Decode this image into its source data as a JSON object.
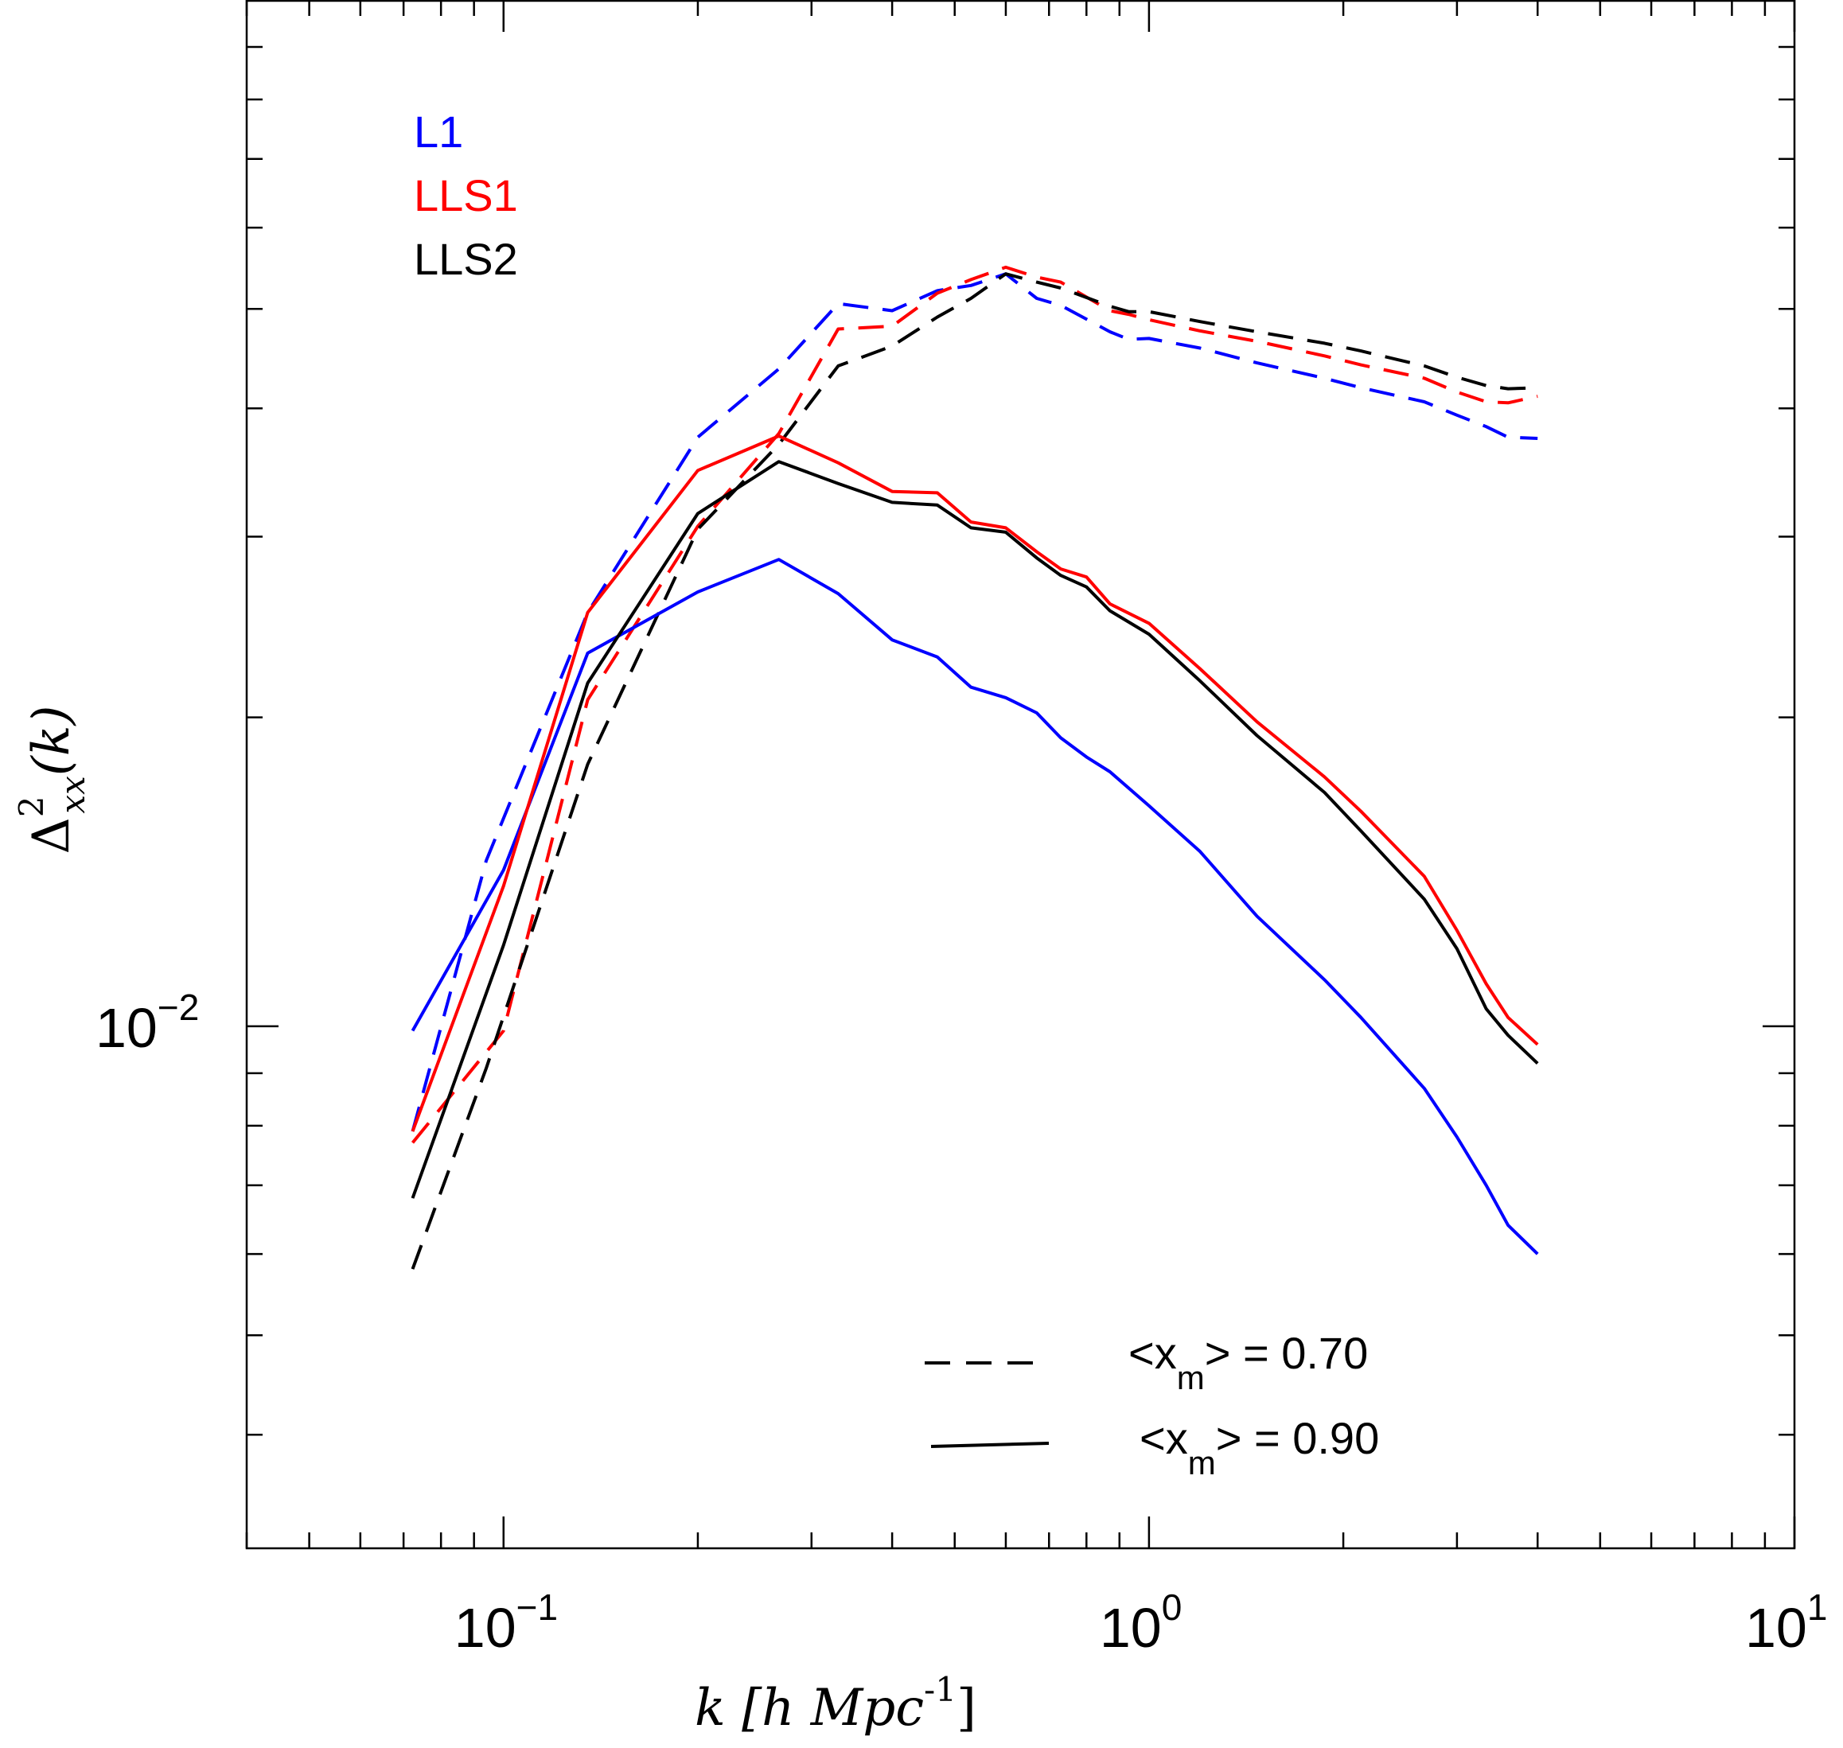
{
  "chart_data": {
    "type": "line",
    "x_scale": "log",
    "y_scale": "log",
    "xlim": [
      0.04,
      10
    ],
    "ylim": [
      0.0031,
      0.1
    ],
    "xlabel": "k  [h  Mpc",
    "xlabel_sup": "-1",
    "xlabel_close": "]",
    "ylabel": "Δ",
    "ylabel_sup": "2",
    "ylabel_sub": "xx",
    "ylabel_rest": "(k)",
    "x_ticks": [
      {
        "value": 0.1,
        "base": "10",
        "exp": "−1"
      },
      {
        "value": 1,
        "base": "10",
        "exp": "0"
      },
      {
        "value": 10,
        "base": "10",
        "exp": "1"
      }
    ],
    "y_ticks": [
      {
        "value": 0.01,
        "base": "10",
        "exp": "−2"
      }
    ],
    "colors": {
      "L1": "#0000ff",
      "LLS1": "#ff0000",
      "LLS2": "#000000"
    },
    "series_legend": [
      {
        "name": "L1",
        "color": "#0000ff"
      },
      {
        "name": "LLS1",
        "color": "#ff0000"
      },
      {
        "name": "LLS2",
        "color": "#000000"
      }
    ],
    "style_legend": [
      {
        "dash": true,
        "text_pre": "<x",
        "sub": "m",
        "text_post": "> = 0.70"
      },
      {
        "dash": false,
        "text_pre": "<x",
        "sub": "m",
        "text_post": "> = 0.90"
      }
    ],
    "series": [
      {
        "name": "L1",
        "dashed": true,
        "x_n": 0.07,
        "x_s": [
          0.0723,
          0.094,
          0.135,
          0.2,
          0.267,
          0.33,
          0.4,
          0.47,
          0.53,
          0.6,
          0.67,
          0.73,
          0.87,
          0.93,
          1.0,
          1.2,
          1.47,
          1.87,
          2.13,
          2.67,
          3.0,
          3.33,
          3.6,
          4.0
        ],
        "y": [
          0.0079,
          0.0145,
          0.0253,
          0.0375,
          0.0437,
          0.0506,
          0.0498,
          0.0521,
          0.0527,
          0.0541,
          0.0512,
          0.0504,
          0.0475,
          0.0467,
          0.0468,
          0.0458,
          0.0443,
          0.0428,
          0.0419,
          0.0406,
          0.0394,
          0.0384,
          0.0375,
          0.0374
        ]
      },
      {
        "name": "LLS1",
        "dashed": true,
        "x_s": [
          0.0723,
          0.1,
          0.135,
          0.2,
          0.267,
          0.33,
          0.4,
          0.47,
          0.53,
          0.6,
          0.67,
          0.73,
          0.87,
          0.93,
          1.0,
          1.2,
          1.47,
          1.87,
          2.13,
          2.67,
          3.0,
          3.33,
          3.6,
          4.0
        ],
        "y": [
          0.0077,
          0.0099,
          0.0208,
          0.0307,
          0.0378,
          0.0478,
          0.0481,
          0.0518,
          0.0534,
          0.0549,
          0.0537,
          0.0531,
          0.0498,
          0.0494,
          0.0488,
          0.0476,
          0.0465,
          0.045,
          0.0441,
          0.0428,
          0.0415,
          0.0406,
          0.0405,
          0.0411
        ]
      },
      {
        "name": "LLS2",
        "dashed": true,
        "x_s": [
          0.0723,
          0.094,
          0.135,
          0.2,
          0.267,
          0.33,
          0.4,
          0.47,
          0.53,
          0.6,
          0.67,
          0.73,
          0.87,
          0.93,
          1.0,
          1.2,
          1.47,
          1.87,
          2.13,
          2.67,
          3.0,
          3.33,
          3.6,
          4.0
        ],
        "y": [
          0.0058,
          0.0091,
          0.018,
          0.0305,
          0.0369,
          0.044,
          0.046,
          0.0491,
          0.0512,
          0.0541,
          0.0531,
          0.0524,
          0.0503,
          0.0497,
          0.0497,
          0.0486,
          0.0475,
          0.0463,
          0.0455,
          0.044,
          0.0429,
          0.0421,
          0.0418,
          0.0419
        ]
      },
      {
        "name": "L1",
        "dashed": false,
        "x_s": [
          0.0723,
          0.1,
          0.135,
          0.2,
          0.267,
          0.33,
          0.4,
          0.47,
          0.53,
          0.6,
          0.67,
          0.73,
          0.8,
          0.87,
          1.0,
          1.2,
          1.47,
          1.87,
          2.13,
          2.67,
          3.0,
          3.33,
          3.6,
          4.0
        ],
        "y": [
          0.0099,
          0.0142,
          0.0231,
          0.0265,
          0.0285,
          0.0264,
          0.0238,
          0.0229,
          0.0214,
          0.0209,
          0.0202,
          0.0191,
          0.0183,
          0.0177,
          0.0164,
          0.0148,
          0.0128,
          0.0111,
          0.0102,
          0.0087,
          0.0078,
          0.007,
          0.0064,
          0.006
        ]
      },
      {
        "name": "LLS1",
        "dashed": false,
        "x_s": [
          0.0723,
          0.1,
          0.135,
          0.2,
          0.267,
          0.33,
          0.4,
          0.47,
          0.53,
          0.6,
          0.67,
          0.73,
          0.8,
          0.87,
          1.0,
          1.2,
          1.47,
          1.87,
          2.13,
          2.67,
          3.0,
          3.33,
          3.6,
          4.0
        ],
        "y": [
          0.0079,
          0.0137,
          0.0253,
          0.0348,
          0.0376,
          0.0354,
          0.0332,
          0.0331,
          0.031,
          0.0306,
          0.029,
          0.0279,
          0.0274,
          0.0258,
          0.0247,
          0.0223,
          0.0198,
          0.0175,
          0.0162,
          0.014,
          0.0124,
          0.011,
          0.0102,
          0.0096
        ]
      },
      {
        "name": "LLS2",
        "dashed": false,
        "x_s": [
          0.0723,
          0.1,
          0.135,
          0.2,
          0.267,
          0.33,
          0.4,
          0.47,
          0.53,
          0.6,
          0.67,
          0.73,
          0.8,
          0.87,
          1.0,
          1.2,
          1.47,
          1.87,
          2.13,
          2.67,
          3.0,
          3.33,
          3.6,
          4.0
        ],
        "y": [
          0.0068,
          0.012,
          0.0216,
          0.0316,
          0.0355,
          0.0338,
          0.0324,
          0.0322,
          0.0306,
          0.0303,
          0.0286,
          0.0275,
          0.0268,
          0.0254,
          0.0241,
          0.0217,
          0.0192,
          0.0169,
          0.0155,
          0.0133,
          0.0119,
          0.0104,
          0.0098,
          0.0092
        ]
      }
    ]
  }
}
